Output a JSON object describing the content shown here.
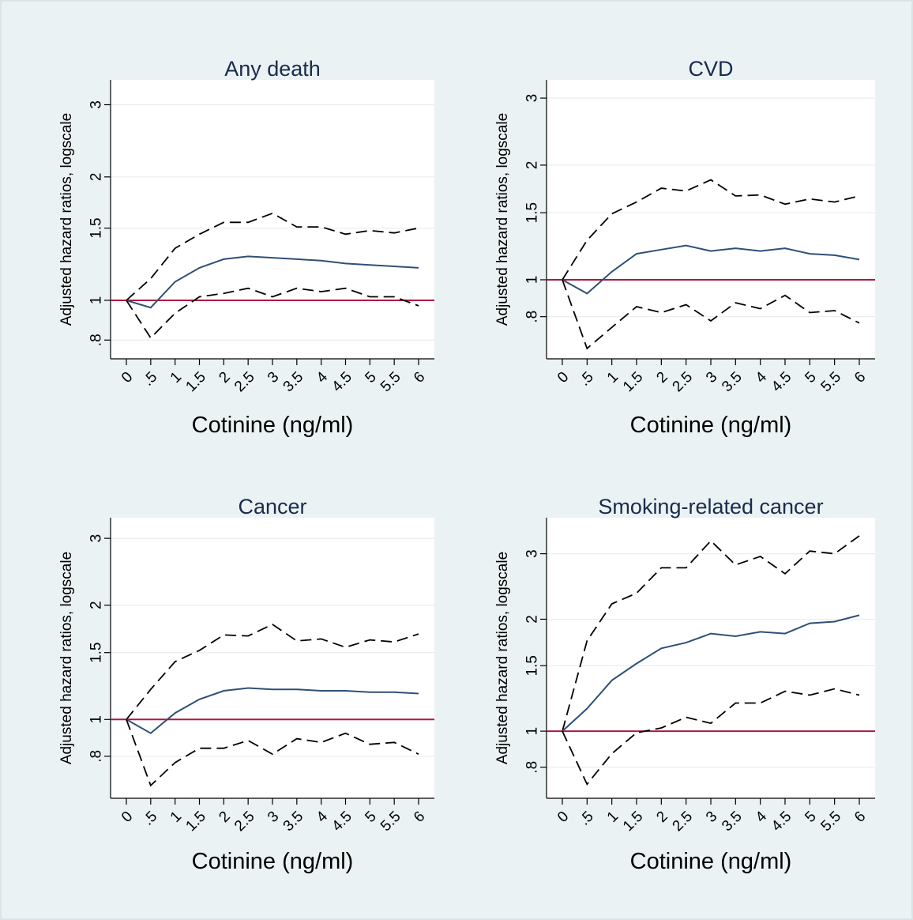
{
  "colors": {
    "outer_background": "#eaf2f3",
    "plot_background": "#ffffff",
    "estimate_line": "#2e5077",
    "ci_line": "#000000",
    "reference_line": "#b0163e",
    "title_text": "#1a2b4c"
  },
  "chart_data": [
    {
      "type": "line",
      "title": "Any death",
      "xlabel": "Cotinine (ng/ml)",
      "ylabel": "Adjusted hazard ratios, logscale",
      "y_scale": "log",
      "ylim": [
        0.72,
        3.45
      ],
      "xlim": [
        0,
        6
      ],
      "reference_line": 1,
      "grid": true,
      "x": [
        0,
        0.5,
        1,
        1.5,
        2,
        2.5,
        3,
        3.5,
        4,
        4.5,
        5,
        5.5,
        6
      ],
      "x_tick_labels": [
        "0",
        ".5",
        "1",
        "1.5",
        "2",
        "2.5",
        "3",
        "3.5",
        "4",
        "4.5",
        "5",
        "5.5",
        "6"
      ],
      "y_ticks": [
        0.8,
        1,
        1.5,
        2,
        3
      ],
      "y_tick_labels": [
        ".8",
        "1",
        "1.5",
        "2",
        "3"
      ],
      "series": [
        {
          "role": "upper-ci",
          "style": "dashed",
          "values": [
            1.0,
            1.13,
            1.34,
            1.45,
            1.55,
            1.55,
            1.63,
            1.51,
            1.51,
            1.45,
            1.48,
            1.46,
            1.5
          ]
        },
        {
          "role": "estimate",
          "style": "solid",
          "values": [
            1.0,
            0.96,
            1.11,
            1.2,
            1.26,
            1.28,
            1.27,
            1.26,
            1.25,
            1.23,
            1.22,
            1.21,
            1.2
          ]
        },
        {
          "role": "lower-ci",
          "style": "dashed",
          "values": [
            1.0,
            0.81,
            0.93,
            1.02,
            1.04,
            1.07,
            1.02,
            1.07,
            1.05,
            1.07,
            1.02,
            1.02,
            0.97
          ]
        }
      ]
    },
    {
      "type": "line",
      "title": "CVD",
      "xlabel": "Cotinine (ng/ml)",
      "ylabel": "Adjusted hazard ratios, logscale",
      "y_scale": "log",
      "ylim": [
        0.62,
        3.35
      ],
      "xlim": [
        0,
        6
      ],
      "reference_line": 1,
      "grid": true,
      "x": [
        0,
        0.5,
        1,
        1.5,
        2,
        2.5,
        3,
        3.5,
        4,
        4.5,
        5,
        5.5,
        6
      ],
      "x_tick_labels": [
        "0",
        ".5",
        "1",
        "1.5",
        "2",
        "2.5",
        "3",
        "3.5",
        "4",
        "4.5",
        "5",
        "5.5",
        "6"
      ],
      "y_ticks": [
        0.8,
        1,
        1.5,
        2,
        3
      ],
      "y_tick_labels": [
        ".8",
        "1",
        "1.5",
        "2",
        "3"
      ],
      "series": [
        {
          "role": "upper-ci",
          "style": "dashed",
          "values": [
            1.0,
            1.27,
            1.49,
            1.6,
            1.74,
            1.71,
            1.83,
            1.66,
            1.67,
            1.58,
            1.63,
            1.6,
            1.66
          ]
        },
        {
          "role": "estimate",
          "style": "solid",
          "values": [
            1.0,
            0.92,
            1.05,
            1.17,
            1.2,
            1.23,
            1.19,
            1.21,
            1.19,
            1.21,
            1.17,
            1.16,
            1.13
          ]
        },
        {
          "role": "lower-ci",
          "style": "dashed",
          "values": [
            1.0,
            0.66,
            0.75,
            0.85,
            0.82,
            0.86,
            0.78,
            0.87,
            0.84,
            0.91,
            0.82,
            0.83,
            0.77
          ]
        }
      ]
    },
    {
      "type": "line",
      "title": "Cancer",
      "xlabel": "Cotinine (ng/ml)",
      "ylabel": "Adjusted hazard ratios, logscale",
      "y_scale": "log",
      "ylim": [
        0.62,
        3.4
      ],
      "xlim": [
        0,
        6
      ],
      "reference_line": 1,
      "grid": true,
      "x": [
        0,
        0.5,
        1,
        1.5,
        2,
        2.5,
        3,
        3.5,
        4,
        4.5,
        5,
        5.5,
        6
      ],
      "x_tick_labels": [
        "0",
        ".5",
        "1",
        "1.5",
        "2",
        "2.5",
        "3",
        "3.5",
        "4",
        "4.5",
        "5",
        "5.5",
        "6"
      ],
      "y_ticks": [
        0.8,
        1,
        1.5,
        2,
        3
      ],
      "y_tick_labels": [
        ".8",
        "1",
        "1.5",
        "2",
        "3"
      ],
      "series": [
        {
          "role": "upper-ci",
          "style": "dashed",
          "values": [
            1.0,
            1.2,
            1.42,
            1.52,
            1.67,
            1.66,
            1.78,
            1.61,
            1.63,
            1.55,
            1.62,
            1.6,
            1.68
          ]
        },
        {
          "role": "estimate",
          "style": "solid",
          "values": [
            1.0,
            0.92,
            1.04,
            1.13,
            1.19,
            1.21,
            1.2,
            1.2,
            1.19,
            1.19,
            1.18,
            1.18,
            1.17
          ]
        },
        {
          "role": "lower-ci",
          "style": "dashed",
          "values": [
            1.0,
            0.67,
            0.77,
            0.84,
            0.84,
            0.88,
            0.81,
            0.89,
            0.87,
            0.92,
            0.86,
            0.87,
            0.81
          ]
        }
      ]
    },
    {
      "type": "line",
      "title": "Smoking-related cancer",
      "xlabel": "Cotinine (ng/ml)",
      "ylabel": "Adjusted hazard ratios, logscale",
      "y_scale": "log",
      "ylim": [
        0.66,
        3.75
      ],
      "xlim": [
        0,
        6
      ],
      "reference_line": 1,
      "grid": true,
      "x": [
        0,
        0.5,
        1,
        1.5,
        2,
        2.5,
        3,
        3.5,
        4,
        4.5,
        5,
        5.5,
        6
      ],
      "x_tick_labels": [
        "0",
        ".5",
        "1",
        "1.5",
        "2",
        "2.5",
        "3",
        "3.5",
        "4",
        "4.5",
        "5",
        "5.5",
        "6"
      ],
      "y_ticks": [
        0.8,
        1,
        1.5,
        2,
        3
      ],
      "y_tick_labels": [
        ".8",
        "1",
        "1.5",
        "2",
        "3"
      ],
      "series": [
        {
          "role": "upper-ci",
          "style": "dashed",
          "values": [
            1.0,
            1.75,
            2.2,
            2.35,
            2.75,
            2.75,
            3.25,
            2.8,
            2.95,
            2.65,
            3.05,
            3.0,
            3.35
          ]
        },
        {
          "role": "estimate",
          "style": "solid",
          "values": [
            1.0,
            1.15,
            1.37,
            1.52,
            1.67,
            1.73,
            1.83,
            1.8,
            1.85,
            1.83,
            1.95,
            1.97,
            2.05
          ]
        },
        {
          "role": "lower-ci",
          "style": "dashed",
          "values": [
            1.0,
            0.72,
            0.87,
            0.99,
            1.02,
            1.09,
            1.05,
            1.19,
            1.19,
            1.28,
            1.25,
            1.3,
            1.25
          ]
        }
      ]
    }
  ]
}
